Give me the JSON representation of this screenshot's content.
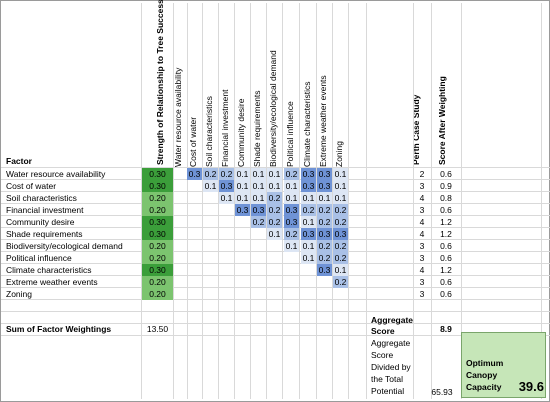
{
  "header": {
    "factor": "Factor",
    "strength": "Strength of Relationship to Tree Success",
    "perth": "Perth Case Study",
    "score_after": "Score After Weighting"
  },
  "matrix_headers": [
    "Water resource availability",
    "Cost of water",
    "Soil characteristics",
    "Financial investment",
    "Community desire",
    "Shade requirements",
    "Biodiversity/ecological demand",
    "Political influence",
    "Climate characteristics",
    "Extreme weather events",
    "Zoning"
  ],
  "rows": [
    {
      "label": "Water resource availability",
      "weight": "0.30",
      "cells": [
        "",
        "0.3",
        "0.2",
        "0.2",
        "0.1",
        "0.1",
        "0.1",
        "0.2",
        "0.3",
        "0.3",
        "0.1"
      ],
      "perth": "2",
      "score": "0.6"
    },
    {
      "label": "Cost of water",
      "weight": "0.30",
      "cells": [
        "",
        "",
        "0.1",
        "0.3",
        "0.1",
        "0.1",
        "0.1",
        "0.1",
        "0.3",
        "0.3",
        "0.1"
      ],
      "perth": "3",
      "score": "0.9"
    },
    {
      "label": "Soil characteristics",
      "weight": "0.20",
      "cells": [
        "",
        "",
        "",
        "0.1",
        "0.1",
        "0.1",
        "0.2",
        "0.1",
        "0.1",
        "0.1",
        "0.1"
      ],
      "perth": "4",
      "score": "0.8"
    },
    {
      "label": "Financial investment",
      "weight": "0.20",
      "cells": [
        "",
        "",
        "",
        "",
        "0.3",
        "0.3",
        "0.2",
        "0.3",
        "0.2",
        "0.2",
        "0.2"
      ],
      "perth": "3",
      "score": "0.6"
    },
    {
      "label": "Community desire",
      "weight": "0.30",
      "cells": [
        "",
        "",
        "",
        "",
        "",
        "0.2",
        "0.2",
        "0.3",
        "0.1",
        "0.2",
        "0.2"
      ],
      "perth": "4",
      "score": "1.2"
    },
    {
      "label": "Shade requirements",
      "weight": "0.30",
      "cells": [
        "",
        "",
        "",
        "",
        "",
        "",
        "0.1",
        "0.2",
        "0.3",
        "0.3",
        "0.3"
      ],
      "perth": "4",
      "score": "1.2"
    },
    {
      "label": "Biodiversity/ecological demand",
      "weight": "0.20",
      "cells": [
        "",
        "",
        "",
        "",
        "",
        "",
        "",
        "0.1",
        "0.1",
        "0.2",
        "0.2"
      ],
      "perth": "3",
      "score": "0.6"
    },
    {
      "label": "Political influence",
      "weight": "0.20",
      "cells": [
        "",
        "",
        "",
        "",
        "",
        "",
        "",
        "",
        "0.1",
        "0.2",
        "0.2"
      ],
      "perth": "3",
      "score": "0.6"
    },
    {
      "label": "Climate characteristics",
      "weight": "0.30",
      "cells": [
        "",
        "",
        "",
        "",
        "",
        "",
        "",
        "",
        "",
        "0.3",
        "0.1"
      ],
      "perth": "4",
      "score": "1.2"
    },
    {
      "label": "Extreme weather events",
      "weight": "0.20",
      "cells": [
        "",
        "",
        "",
        "",
        "",
        "",
        "",
        "",
        "",
        "",
        "0.2"
      ],
      "perth": "3",
      "score": "0.6"
    },
    {
      "label": "Zoning",
      "weight": "0.20",
      "cells": [
        "",
        "",
        "",
        "",
        "",
        "",
        "",
        "",
        "",
        "",
        ""
      ],
      "perth": "3",
      "score": "0.6"
    }
  ],
  "summary": {
    "sum_label": "Sum of Factor Weightings",
    "sum_value": "13.50",
    "aggregate_label_1": "Aggregate",
    "aggregate_label_2": "Score",
    "aggregate_value": "8.9",
    "divided_lines": [
      "Aggregate",
      "Score",
      "Divided by",
      "the Total",
      "Potential"
    ],
    "divided_value": "65.93",
    "optimum_lines": [
      "Optimum",
      "Canopy",
      "Capacity"
    ],
    "optimum_value": "39.6"
  },
  "colors": {
    "weight_green": "#3b9e3a",
    "heat_low": "#dde6f4",
    "heat_mid": "#a9c0e6",
    "heat_high": "#6f93d6",
    "optimum_fill": "#c6e6b8"
  }
}
